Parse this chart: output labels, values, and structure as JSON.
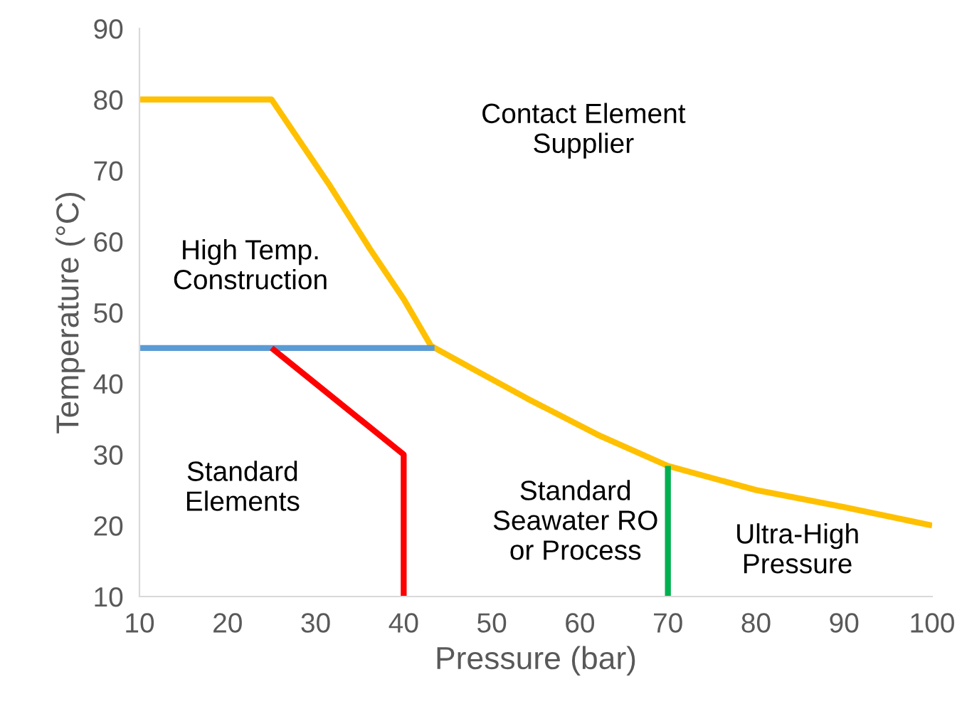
{
  "chart_data": {
    "type": "line",
    "xlabel": "Pressure (bar)",
    "ylabel": "Temperature (°C)",
    "xlim": [
      10,
      100
    ],
    "xticks": [
      10,
      20,
      30,
      40,
      50,
      60,
      70,
      80,
      90,
      100
    ],
    "ylim": [
      10,
      90
    ],
    "yticks": [
      10,
      20,
      30,
      40,
      50,
      60,
      70,
      80,
      90
    ],
    "grid": false,
    "legend": false,
    "marker": "none",
    "line_style": "solid",
    "series": [
      {
        "color": "#ffc000",
        "x": [
          10,
          25,
          31.6,
          36.2,
          40,
          43.1,
          47.5,
          54,
          62,
          70,
          80,
          90,
          100
        ],
        "values": [
          80,
          80,
          67.9,
          58.9,
          51.9,
          45.3,
          42.3,
          37.9,
          32.8,
          28.4,
          25,
          22.6,
          20
        ]
      },
      {
        "color": "#5b9bd5",
        "x": [
          10,
          43.5
        ],
        "values": [
          45,
          45
        ]
      },
      {
        "color": "#ff0000",
        "x": [
          25,
          40,
          40
        ],
        "values": [
          45,
          30,
          10
        ]
      },
      {
        "color": "#00b050",
        "x": [
          70,
          70
        ],
        "values": [
          28.4,
          10
        ]
      }
    ],
    "annotations": [
      "Contact Element\nSupplier",
      "High Temp.\nConstruction",
      "Standard\nElements",
      "Standard\nSeawater RO\nor Process",
      "Ultra-High\nPressure"
    ]
  }
}
